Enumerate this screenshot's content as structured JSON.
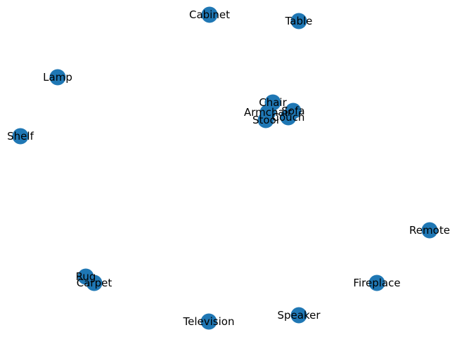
{
  "colors": {
    "node_fill": "#1f77b4",
    "background": "#ffffff",
    "label": "#000000"
  },
  "graph": {
    "nodes": [
      {
        "id": "cabinet",
        "label": "Cabinet"
      },
      {
        "id": "table",
        "label": "Table"
      },
      {
        "id": "lamp",
        "label": "Lamp"
      },
      {
        "id": "chair",
        "label": "Chair"
      },
      {
        "id": "sofa",
        "label": "Sofa"
      },
      {
        "id": "armchair",
        "label": "Armchair"
      },
      {
        "id": "couch",
        "label": "Couch"
      },
      {
        "id": "stool",
        "label": "Stool"
      },
      {
        "id": "shelf",
        "label": "Shelf"
      },
      {
        "id": "remote",
        "label": "Remote"
      },
      {
        "id": "rug",
        "label": "Rug"
      },
      {
        "id": "carpet",
        "label": "Carpet"
      },
      {
        "id": "fireplace",
        "label": "Fireplace"
      },
      {
        "id": "speaker",
        "label": "Speaker"
      },
      {
        "id": "television",
        "label": "Television"
      }
    ],
    "edges": []
  }
}
